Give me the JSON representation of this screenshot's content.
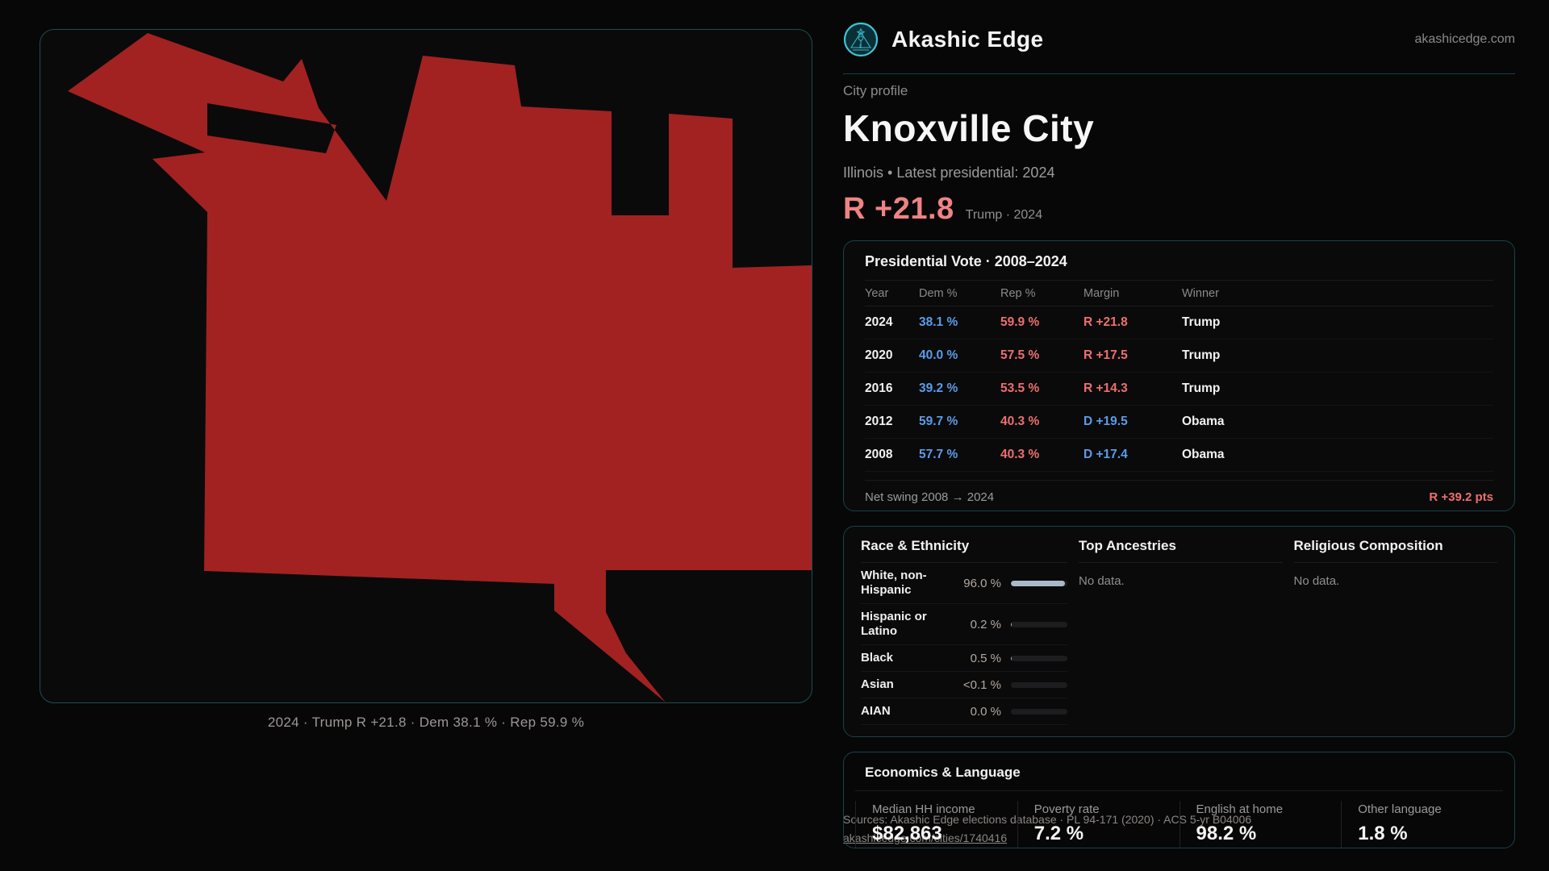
{
  "brand": {
    "name": "Akashic Edge",
    "domain": "akashicedge.com"
  },
  "profile": {
    "eyebrow": "City profile",
    "title": "Knoxville City",
    "subtitle": "Illinois • Latest presidential: 2024",
    "margin_big": "R +21.8",
    "margin_context": "Trump · 2024"
  },
  "map": {
    "caption": "2024 · Trump R +21.8 · Dem 38.1 % · Rep 59.9 %",
    "fill": "#a22221"
  },
  "vote_card": {
    "title": "Presidential Vote · 2008–2024",
    "columns": [
      "Year",
      "Dem %",
      "Rep %",
      "Margin",
      "Winner"
    ],
    "rows": [
      {
        "year": "2024",
        "dem": "38.1 %",
        "rep": "59.9 %",
        "margin": "R +21.8",
        "margin_party": "R",
        "winner": "Trump"
      },
      {
        "year": "2020",
        "dem": "40.0 %",
        "rep": "57.5 %",
        "margin": "R +17.5",
        "margin_party": "R",
        "winner": "Trump"
      },
      {
        "year": "2016",
        "dem": "39.2 %",
        "rep": "53.5 %",
        "margin": "R +14.3",
        "margin_party": "R",
        "winner": "Trump"
      },
      {
        "year": "2012",
        "dem": "59.7 %",
        "rep": "40.3 %",
        "margin": "D +19.5",
        "margin_party": "D",
        "winner": "Obama"
      },
      {
        "year": "2008",
        "dem": "57.7 %",
        "rep": "40.3 %",
        "margin": "D +17.4",
        "margin_party": "D",
        "winner": "Obama"
      }
    ],
    "net_swing_label": "Net swing 2008 → 2024",
    "net_swing_value": "R +39.2 pts"
  },
  "demographics": {
    "race_title": "Race & Ethnicity",
    "race_rows": [
      {
        "label": "White, non-Hispanic",
        "value": "96.0 %",
        "pct": 96.0
      },
      {
        "label": "Hispanic or Latino",
        "value": "0.2 %",
        "pct": 0.2
      },
      {
        "label": "Black",
        "value": "0.5 %",
        "pct": 0.5
      },
      {
        "label": "Asian",
        "value": "<0.1 %",
        "pct": 0.05
      },
      {
        "label": "AIAN",
        "value": "0.0 %",
        "pct": 0.0
      }
    ],
    "ancestries_title": "Top Ancestries",
    "ancestries_empty": "No data.",
    "religion_title": "Religious Composition",
    "religion_empty": "No data."
  },
  "economics": {
    "title": "Economics & Language",
    "stats": [
      {
        "label": "Median HH income",
        "value": "$82,863"
      },
      {
        "label": "Poverty rate",
        "value": "7.2 %"
      },
      {
        "label": "English at home",
        "value": "98.2 %"
      },
      {
        "label": "Other language",
        "value": "1.8 %"
      }
    ]
  },
  "footer": {
    "line1": "Sources: Akashic Edge elections database · PL 94-171 (2020) · ACS 5-yr B04006",
    "line2": "akashicedge.com/cities/1740416"
  },
  "colors": {
    "accent_red": "#ee6f6f",
    "accent_blue": "#5b9ce8",
    "margin_big": "#ef8383",
    "bar_fill": "#a9b9c9",
    "map_fill": "#a22221",
    "panel_border": "#1e4d54",
    "logo_teal": "#3fc5d6"
  }
}
